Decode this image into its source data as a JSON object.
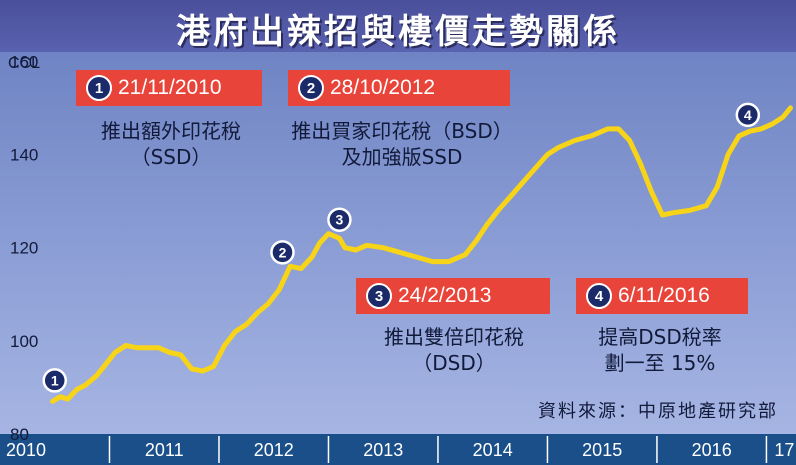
{
  "title": "港府出辣招與樓價走勢關係",
  "source": "資料來源：中原地產研究部",
  "chart_data": {
    "type": "line",
    "title": "港府出辣招與樓價走勢關係",
    "ylabel": "CCL",
    "xlabel": "",
    "ylim": [
      80,
      162
    ],
    "xlim": [
      2010.0,
      2017.27
    ],
    "y_ticks": [
      80,
      100,
      120,
      140,
      160
    ],
    "x_ticks": [
      "2010",
      "2011",
      "2012",
      "2013",
      "2014",
      "2015",
      "2016",
      "17"
    ],
    "grid": false,
    "series": [
      {
        "color": "#f7d417",
        "x": [
          2010.48,
          2010.55,
          2010.62,
          2010.7,
          2010.78,
          2010.88,
          2010.95,
          2011.05,
          2011.15,
          2011.25,
          2011.35,
          2011.45,
          2011.55,
          2011.65,
          2011.75,
          2011.85,
          2011.95,
          2012.05,
          2012.15,
          2012.25,
          2012.35,
          2012.45,
          2012.55,
          2012.65,
          2012.75,
          2012.85,
          2012.92,
          2013.0,
          2013.1,
          2013.15,
          2013.25,
          2013.35,
          2013.5,
          2013.65,
          2013.8,
          2013.95,
          2014.1,
          2014.25,
          2014.35,
          2014.45,
          2014.55,
          2014.7,
          2014.85,
          2015.0,
          2015.1,
          2015.25,
          2015.4,
          2015.55,
          2015.65,
          2015.75,
          2015.85,
          2015.95,
          2016.05,
          2016.15,
          2016.3,
          2016.45,
          2016.55,
          2016.65,
          2016.75,
          2016.85,
          2016.95,
          2017.05,
          2017.15,
          2017.22
        ],
        "values": [
          87,
          88,
          87.5,
          89.5,
          90.5,
          92.5,
          94.5,
          97.5,
          99,
          98.5,
          98.5,
          98.5,
          97.5,
          97,
          94,
          93.5,
          94.5,
          99,
          102,
          103.5,
          106,
          108,
          111,
          116,
          115.5,
          118,
          121,
          123,
          122,
          120,
          119.5,
          120.5,
          120,
          119,
          118,
          117,
          117,
          118.5,
          121.5,
          125,
          128,
          132,
          136,
          140,
          141.5,
          143,
          144,
          145.5,
          145.5,
          143,
          138,
          132,
          127,
          127.5,
          128,
          129,
          133,
          140,
          144,
          145,
          145.5,
          146.5,
          148,
          150
        ]
      }
    ],
    "annotations": [
      {
        "num": "1",
        "date": "21/11/2010",
        "text": [
          "推出額外印花稅",
          "（SSD）"
        ],
        "x": 2010.5,
        "y": 91.5
      },
      {
        "num": "2",
        "date": "28/10/2012",
        "text": [
          "推出買家印花稅（BSD）",
          "及加強版SSD"
        ],
        "x": 2012.58,
        "y": 119
      },
      {
        "num": "3",
        "date": "24/2/2013",
        "text": [
          "推出雙倍印花稅",
          "（DSD）"
        ],
        "x": 2013.1,
        "y": 126
      },
      {
        "num": "4",
        "date": "6/11/2016",
        "text": [
          "提高DSD稅率",
          "劃一至 15%"
        ],
        "x": 2016.83,
        "y": 148.5
      }
    ]
  },
  "colors": {
    "title_bar": "#4a4f9a",
    "plot_bg": "#7f93cf",
    "line": "#f7d417",
    "marker_fill": "#1b2b6a",
    "annotation_box": "#e8443a",
    "year_bar": "#1b4f8a"
  }
}
